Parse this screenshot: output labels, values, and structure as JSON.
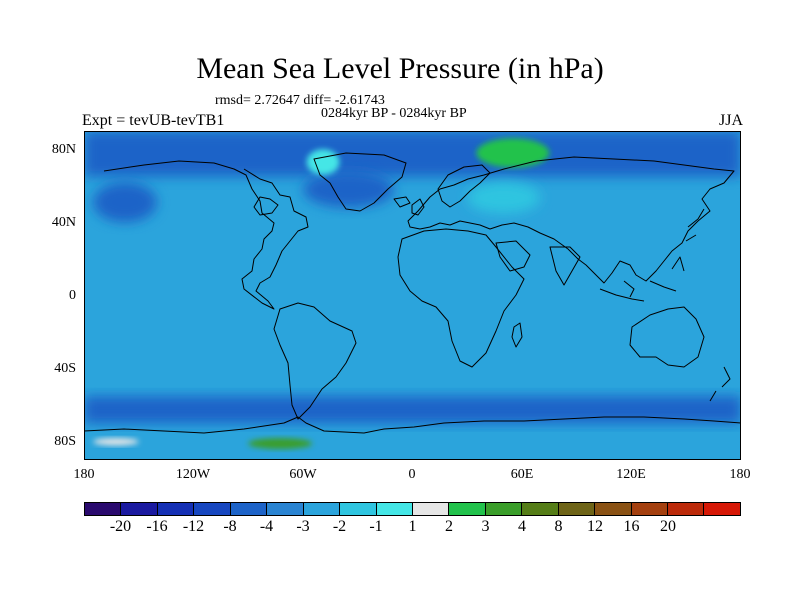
{
  "figure": {
    "title": "Mean Sea Level Pressure (in hPa)",
    "stats": "rmsd= 2.72647 diff= -2.61743",
    "period": "0284kyr BP - 0284kyr BP",
    "experiment": "Expt = tevUB-tevTB1",
    "season": "JJA"
  },
  "axes": {
    "lat_ticks": [
      {
        "label": "80N",
        "value": 80
      },
      {
        "label": "40N",
        "value": 40
      },
      {
        "label": "0",
        "value": 0
      },
      {
        "label": "40S",
        "value": -40
      },
      {
        "label": "80S",
        "value": -80
      }
    ],
    "lon_ticks": [
      {
        "label": "180",
        "value": -180
      },
      {
        "label": "120W",
        "value": -120
      },
      {
        "label": "60W",
        "value": -60
      },
      {
        "label": "0",
        "value": 0
      },
      {
        "label": "60E",
        "value": 60
      },
      {
        "label": "120E",
        "value": 120
      },
      {
        "label": "180",
        "value": 180
      }
    ],
    "lat_range": [
      -90,
      90
    ],
    "lon_range": [
      -180,
      180
    ]
  },
  "colorbar": {
    "colors": [
      "#2a0a6e",
      "#1b1aa0",
      "#1530b5",
      "#1747c0",
      "#1d63c8",
      "#2a84d2",
      "#2ba4dc",
      "#2fc5e0",
      "#44e6e6",
      "#e6e6e6",
      "#22c24c",
      "#3a9e2a",
      "#557d17",
      "#6e6418",
      "#8a5214",
      "#a4400f",
      "#bc2a0a",
      "#d61806"
    ],
    "labels": [
      "-20",
      "-16",
      "-12",
      "-8",
      "-4",
      "-3",
      "-2",
      "-1",
      "1",
      "2",
      "3",
      "4",
      "8",
      "12",
      "16",
      "20"
    ]
  },
  "chart_data": {
    "type": "heatmap",
    "title": "Mean Sea Level Pressure (in hPa)",
    "variable": "Mean Sea Level Pressure difference",
    "units": "hPa",
    "projection": "cylindrical equidistant",
    "levels": [
      -20,
      -16,
      -12,
      -8,
      -4,
      -3,
      -2,
      -1,
      1,
      2,
      3,
      4,
      8,
      12,
      16,
      20
    ],
    "background_value": -2.5,
    "features": [
      {
        "name": "arctic_band",
        "lon": [
          -180,
          180
        ],
        "lat": [
          65,
          90
        ],
        "value": -5
      },
      {
        "name": "north_pacific_low",
        "lon": [
          -175,
          -140
        ],
        "lat": [
          40,
          62
        ],
        "value": -5
      },
      {
        "name": "north_atlantic_low",
        "lon": [
          -60,
          -10
        ],
        "lat": [
          48,
          68
        ],
        "value": -5
      },
      {
        "name": "scandinavia_high",
        "lon": [
          35,
          75
        ],
        "lat": [
          70,
          86
        ],
        "value": 2
      },
      {
        "name": "greenland_high",
        "lon": [
          -58,
          -40
        ],
        "lat": [
          66,
          80
        ],
        "value": 0.5
      },
      {
        "name": "eurasia_anomaly",
        "lon": [
          30,
          70
        ],
        "lat": [
          45,
          62
        ],
        "value": -1.5
      },
      {
        "name": "southern_ocean_low",
        "lon": [
          -180,
          180
        ],
        "lat": [
          -70,
          -55
        ],
        "value": -5
      },
      {
        "name": "amundsen_sea_high",
        "lon": [
          -90,
          -55
        ],
        "lat": [
          -84,
          -78
        ],
        "value": 3
      },
      {
        "name": "ross_sea_high",
        "lon": [
          -175,
          -150
        ],
        "lat": [
          -82,
          -78
        ],
        "value": 1
      }
    ]
  }
}
